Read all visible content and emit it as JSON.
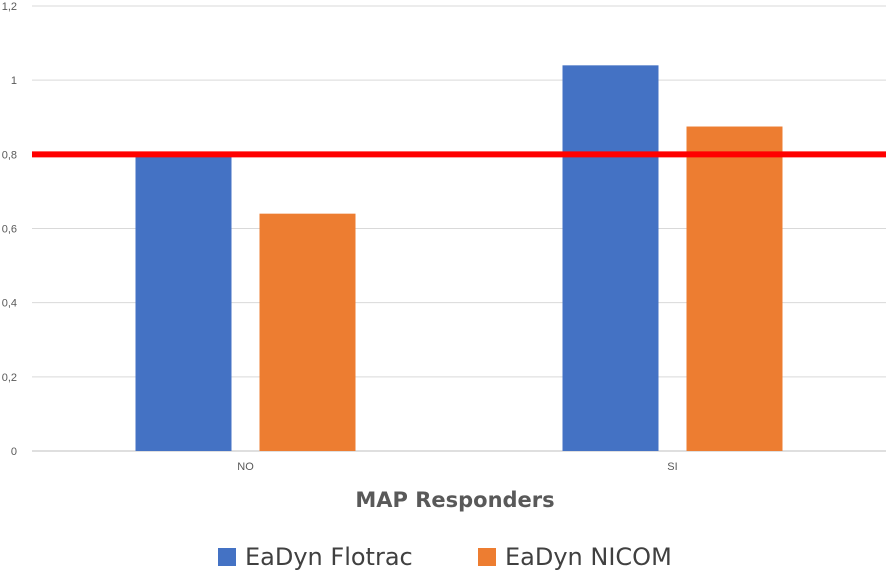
{
  "chart_data": {
    "type": "bar",
    "categories": [
      "NO",
      "SI"
    ],
    "series": [
      {
        "name": "EaDyn Flotrac",
        "color": "#4472C4",
        "values": [
          0.8,
          1.04
        ]
      },
      {
        "name": "EaDyn NICOM",
        "color": "#ED7D31",
        "values": [
          0.64,
          0.875
        ]
      }
    ],
    "ylim": [
      0,
      1.2
    ],
    "yticks": [
      "0",
      "0,2",
      "0,4",
      "0,6",
      "0,8",
      "1",
      "1,2"
    ],
    "ytick_values": [
      0,
      0.2,
      0.4,
      0.6,
      0.8,
      1.0,
      1.2
    ],
    "xlabel": "MAP Responders",
    "ylabel": "",
    "title": "",
    "grid": true,
    "legend_position": "bottom",
    "reference_line": {
      "value": 0.8,
      "color": "#FF0000"
    }
  }
}
